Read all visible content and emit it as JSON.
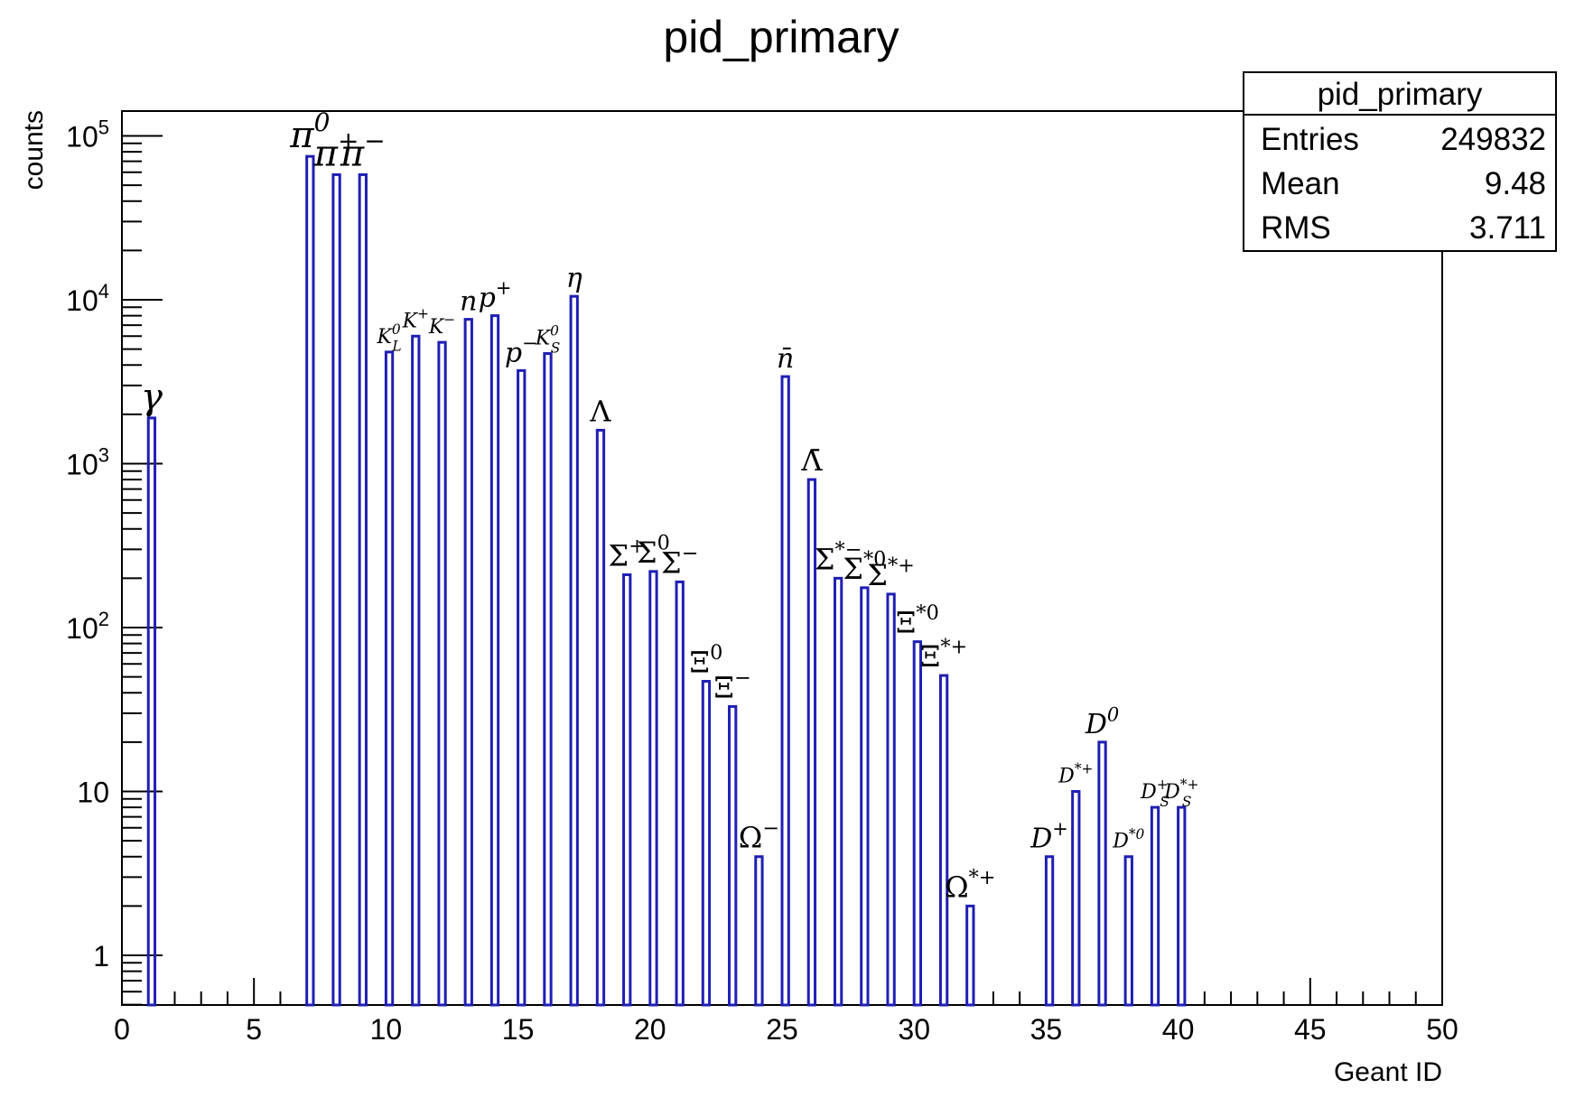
{
  "chart_data": {
    "type": "bar",
    "title": "pid_primary",
    "xlabel": "Geant ID",
    "ylabel": "counts",
    "x_scale": "linear",
    "y_scale": "log",
    "xlim": [
      0,
      50
    ],
    "ylim": [
      0.5,
      150000
    ],
    "bar_color": "#1f1fb4",
    "x_ticks": [
      0,
      5,
      10,
      15,
      20,
      25,
      30,
      35,
      40,
      45,
      50
    ],
    "x_tick_labels": [
      "0",
      "5",
      "10",
      "15",
      "20",
      "25",
      "30",
      "35",
      "40",
      "45",
      "50"
    ],
    "y_ticks": [
      1,
      10,
      100,
      1000,
      10000,
      100000
    ],
    "y_tick_labels": [
      {
        "base": "1",
        "exp": ""
      },
      {
        "base": "10",
        "exp": ""
      },
      {
        "base": "10",
        "exp": "2"
      },
      {
        "base": "10",
        "exp": "3"
      },
      {
        "base": "10",
        "exp": "4"
      },
      {
        "base": "10",
        "exp": "5"
      }
    ],
    "bins": [
      {
        "x": 1,
        "value": 1900,
        "label": "γ",
        "label_sup": "",
        "label_sub": ""
      },
      {
        "x": 7,
        "value": 75000,
        "label": "π",
        "label_sup": "0",
        "label_sub": ""
      },
      {
        "x": 8,
        "value": 58000,
        "label": "π",
        "label_sup": "+",
        "label_sub": ""
      },
      {
        "x": 9,
        "value": 58000,
        "label": "π",
        "label_sup": "−",
        "label_sub": ""
      },
      {
        "x": 10,
        "value": 4800,
        "label": "K",
        "label_sup": "0",
        "label_sub": "L"
      },
      {
        "x": 11,
        "value": 6000,
        "label": "K",
        "label_sup": "+",
        "label_sub": ""
      },
      {
        "x": 12,
        "value": 5500,
        "label": "K",
        "label_sup": "−",
        "label_sub": ""
      },
      {
        "x": 13,
        "value": 7600,
        "label": "n",
        "label_sup": "",
        "label_sub": ""
      },
      {
        "x": 14,
        "value": 8000,
        "label": "p",
        "label_sup": "+",
        "label_sub": ""
      },
      {
        "x": 15,
        "value": 3700,
        "label": "p",
        "label_sup": "−",
        "label_sub": ""
      },
      {
        "x": 16,
        "value": 4700,
        "label": "K",
        "label_sup": "0",
        "label_sub": "S"
      },
      {
        "x": 17,
        "value": 10500,
        "label": "η",
        "label_sup": "",
        "label_sub": ""
      },
      {
        "x": 18,
        "value": 1600,
        "label": "Λ",
        "label_sup": "",
        "label_sub": ""
      },
      {
        "x": 19,
        "value": 210,
        "label": "Σ",
        "label_sup": "+",
        "label_sub": ""
      },
      {
        "x": 20,
        "value": 220,
        "label": "Σ",
        "label_sup": "0",
        "label_sub": ""
      },
      {
        "x": 21,
        "value": 190,
        "label": "Σ",
        "label_sup": "−",
        "label_sub": ""
      },
      {
        "x": 22,
        "value": 47,
        "label": "Ξ",
        "label_sup": "0",
        "label_sub": ""
      },
      {
        "x": 23,
        "value": 33,
        "label": "Ξ",
        "label_sup": "−",
        "label_sub": ""
      },
      {
        "x": 24,
        "value": 4,
        "label": "Ω",
        "label_sup": "−",
        "label_sub": ""
      },
      {
        "x": 25,
        "value": 3400,
        "label": "n̄",
        "label_sup": "",
        "label_sub": ""
      },
      {
        "x": 26,
        "value": 800,
        "label": "Λ̄",
        "label_sup": "",
        "label_sub": ""
      },
      {
        "x": 27,
        "value": 200,
        "label": "Σ",
        "label_sup": "*−",
        "label_sub": ""
      },
      {
        "x": 28,
        "value": 175,
        "label": "Σ",
        "label_sup": "*0",
        "label_sub": ""
      },
      {
        "x": 29,
        "value": 160,
        "label": "Σ",
        "label_sup": "*+",
        "label_sub": ""
      },
      {
        "x": 30,
        "value": 82,
        "label": "Ξ",
        "label_sup": "*0",
        "label_sub": ""
      },
      {
        "x": 31,
        "value": 51,
        "label": "Ξ",
        "label_sup": "*+",
        "label_sub": ""
      },
      {
        "x": 32,
        "value": 2,
        "label": "Ω",
        "label_sup": "*+",
        "label_sub": ""
      },
      {
        "x": 35,
        "value": 4,
        "label": "D",
        "label_sup": "+",
        "label_sub": ""
      },
      {
        "x": 36,
        "value": 10,
        "label": "D",
        "label_sup": "*+",
        "label_sub": ""
      },
      {
        "x": 37,
        "value": 20,
        "label": "D",
        "label_sup": "0",
        "label_sub": ""
      },
      {
        "x": 38,
        "value": 4,
        "label": "D",
        "label_sup": "*0",
        "label_sub": ""
      },
      {
        "x": 39,
        "value": 8,
        "label": "D",
        "label_sup": "+",
        "label_sub": "S"
      },
      {
        "x": 40,
        "value": 8,
        "label": "D",
        "label_sup": "*+",
        "label_sub": "S"
      }
    ]
  },
  "stats_box": {
    "title": "pid_primary",
    "rows": [
      {
        "key": "Entries",
        "value": "249832"
      },
      {
        "key": "Mean",
        "value": "9.48"
      },
      {
        "key": "RMS",
        "value": "3.711"
      }
    ]
  }
}
